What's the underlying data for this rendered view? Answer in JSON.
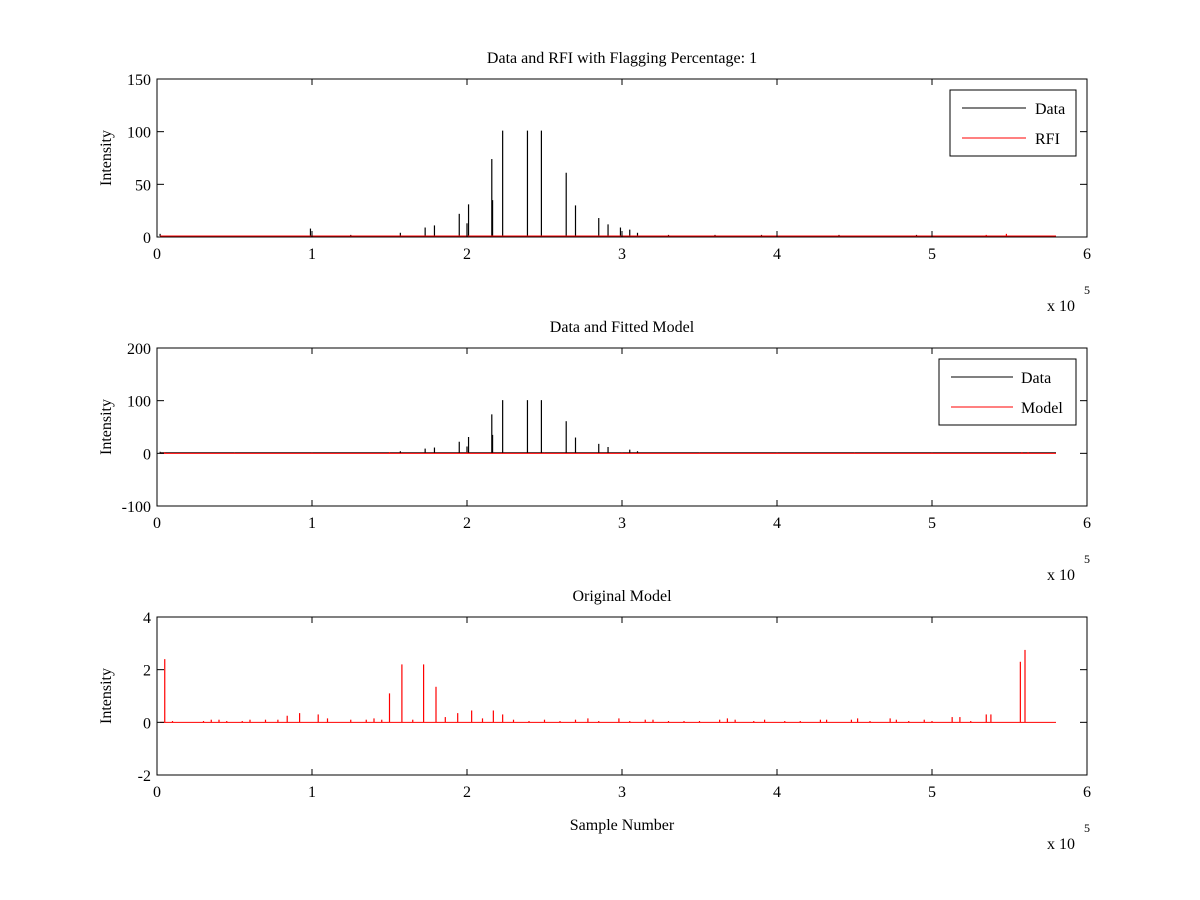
{
  "figure": {
    "background": "#ffffff"
  },
  "chart_data": [
    {
      "type": "line",
      "title": "Data and RFI with Flagging Percentage: 1",
      "xlabel": "",
      "ylabel": "Intensity",
      "xlim": [
        0,
        6
      ],
      "ylim": [
        0,
        150
      ],
      "xticks": [
        0,
        1,
        2,
        3,
        4,
        5,
        6
      ],
      "xtick_labels": [
        "0",
        "1",
        "2",
        "3",
        "4",
        "5",
        "6"
      ],
      "yticks": [
        0,
        50,
        100,
        150
      ],
      "ytick_labels": [
        "0",
        "50",
        "100",
        "150"
      ],
      "x_multiplier": {
        "base": "x 10",
        "exponent": "5"
      },
      "legend": {
        "placement": "top-right",
        "entries": [
          "Data",
          "RFI"
        ]
      },
      "series": [
        {
          "name": "Data",
          "color": "#000000",
          "baseline": 1,
          "spikes": [
            [
              0.02,
              3
            ],
            [
              0.99,
              8
            ],
            [
              1.25,
              2
            ],
            [
              1.57,
              4
            ],
            [
              1.73,
              9
            ],
            [
              1.79,
              11
            ],
            [
              1.95,
              22
            ],
            [
              2.0,
              13
            ],
            [
              2.01,
              31
            ],
            [
              2.16,
              74
            ],
            [
              2.165,
              35
            ],
            [
              2.23,
              101
            ],
            [
              2.39,
              101
            ],
            [
              2.48,
              101
            ],
            [
              2.64,
              61
            ],
            [
              2.7,
              30
            ],
            [
              2.85,
              18
            ],
            [
              2.91,
              12
            ],
            [
              2.99,
              9
            ],
            [
              3.05,
              7
            ],
            [
              3.1,
              4
            ],
            [
              3.3,
              2
            ],
            [
              3.6,
              2
            ],
            [
              3.9,
              2
            ],
            [
              4.4,
              2
            ],
            [
              4.9,
              2
            ]
          ]
        },
        {
          "name": "RFI",
          "color": "#ff0000",
          "baseline": 1,
          "spikes": [
            [
              5.35,
              2
            ],
            [
              5.48,
              3
            ]
          ]
        }
      ]
    },
    {
      "type": "line",
      "title": "Data and Fitted Model",
      "xlabel": "",
      "ylabel": "Intensity",
      "xlim": [
        0,
        6
      ],
      "ylim": [
        -100,
        200
      ],
      "xticks": [
        0,
        1,
        2,
        3,
        4,
        5,
        6
      ],
      "xtick_labels": [
        "0",
        "1",
        "2",
        "3",
        "4",
        "5",
        "6"
      ],
      "yticks": [
        -100,
        0,
        100,
        200
      ],
      "ytick_labels": [
        "-100",
        "0",
        "100",
        "200"
      ],
      "x_multiplier": {
        "base": "x 10",
        "exponent": "5"
      },
      "legend": {
        "placement": "top-right",
        "entries": [
          "Data",
          "Model"
        ]
      },
      "series": [
        {
          "name": "Data",
          "color": "#000000",
          "baseline": 1,
          "spikes": [
            [
              0.02,
              3
            ],
            [
              1.57,
              4
            ],
            [
              1.73,
              9
            ],
            [
              1.79,
              11
            ],
            [
              1.95,
              22
            ],
            [
              2.0,
              13
            ],
            [
              2.01,
              31
            ],
            [
              2.16,
              74
            ],
            [
              2.165,
              35
            ],
            [
              2.23,
              101
            ],
            [
              2.39,
              101
            ],
            [
              2.48,
              101
            ],
            [
              2.64,
              61
            ],
            [
              2.7,
              30
            ],
            [
              2.85,
              18
            ],
            [
              2.91,
              12
            ],
            [
              3.05,
              7
            ],
            [
              3.1,
              4
            ]
          ]
        },
        {
          "name": "Model",
          "color": "#ff0000",
          "baseline": 0,
          "spikes": [
            [
              0.05,
              2
            ],
            [
              0.5,
              1
            ],
            [
              1.0,
              1
            ],
            [
              1.5,
              2
            ],
            [
              2.0,
              2
            ],
            [
              2.5,
              1
            ],
            [
              3.0,
              1
            ],
            [
              3.5,
              1
            ],
            [
              4.0,
              1
            ],
            [
              4.5,
              1
            ],
            [
              5.0,
              1
            ],
            [
              5.58,
              2
            ],
            [
              5.62,
              2
            ]
          ]
        }
      ]
    },
    {
      "type": "line",
      "title": "Original Model",
      "xlabel": "Sample Number",
      "ylabel": "Intensity",
      "xlim": [
        0,
        6
      ],
      "ylim": [
        -2,
        4
      ],
      "xticks": [
        0,
        1,
        2,
        3,
        4,
        5,
        6
      ],
      "xtick_labels": [
        "0",
        "1",
        "2",
        "3",
        "4",
        "5",
        "6"
      ],
      "yticks": [
        -2,
        0,
        2,
        4
      ],
      "ytick_labels": [
        "-2",
        "0",
        "2",
        "4"
      ],
      "x_multiplier": {
        "base": "x 10",
        "exponent": "5"
      },
      "series": [
        {
          "name": "",
          "color": "#ff0000",
          "baseline": 0,
          "spikes": [
            [
              0.05,
              2.4
            ],
            [
              0.1,
              0.05
            ],
            [
              0.3,
              0.05
            ],
            [
              0.35,
              0.1
            ],
            [
              0.4,
              0.1
            ],
            [
              0.45,
              0.05
            ],
            [
              0.55,
              0.05
            ],
            [
              0.6,
              0.1
            ],
            [
              0.7,
              0.1
            ],
            [
              0.78,
              0.1
            ],
            [
              0.84,
              0.25
            ],
            [
              0.92,
              0.35
            ],
            [
              1.04,
              0.3
            ],
            [
              1.1,
              0.15
            ],
            [
              1.25,
              0.1
            ],
            [
              1.35,
              0.1
            ],
            [
              1.4,
              0.15
            ],
            [
              1.45,
              0.1
            ],
            [
              1.5,
              1.1
            ],
            [
              1.58,
              2.2
            ],
            [
              1.65,
              0.1
            ],
            [
              1.72,
              2.2
            ],
            [
              1.8,
              1.35
            ],
            [
              1.86,
              0.2
            ],
            [
              1.94,
              0.35
            ],
            [
              2.03,
              0.45
            ],
            [
              2.1,
              0.15
            ],
            [
              2.17,
              0.45
            ],
            [
              2.23,
              0.3
            ],
            [
              2.3,
              0.1
            ],
            [
              2.4,
              0.05
            ],
            [
              2.5,
              0.1
            ],
            [
              2.6,
              0.05
            ],
            [
              2.7,
              0.1
            ],
            [
              2.78,
              0.15
            ],
            [
              2.85,
              0.05
            ],
            [
              2.98,
              0.15
            ],
            [
              3.05,
              0.05
            ],
            [
              3.15,
              0.1
            ],
            [
              3.2,
              0.1
            ],
            [
              3.3,
              0.05
            ],
            [
              3.4,
              0.05
            ],
            [
              3.5,
              0.05
            ],
            [
              3.63,
              0.1
            ],
            [
              3.68,
              0.15
            ],
            [
              3.73,
              0.1
            ],
            [
              3.85,
              0.05
            ],
            [
              3.92,
              0.1
            ],
            [
              4.05,
              0.05
            ],
            [
              4.15,
              0.05
            ],
            [
              4.28,
              0.1
            ],
            [
              4.32,
              0.1
            ],
            [
              4.48,
              0.1
            ],
            [
              4.52,
              0.15
            ],
            [
              4.6,
              0.05
            ],
            [
              4.73,
              0.15
            ],
            [
              4.77,
              0.1
            ],
            [
              4.85,
              0.05
            ],
            [
              4.95,
              0.1
            ],
            [
              5.0,
              0.05
            ],
            [
              5.13,
              0.2
            ],
            [
              5.18,
              0.2
            ],
            [
              5.25,
              0.05
            ],
            [
              5.35,
              0.3
            ],
            [
              5.38,
              0.3
            ],
            [
              5.57,
              2.3
            ],
            [
              5.6,
              2.75
            ]
          ]
        }
      ]
    }
  ]
}
